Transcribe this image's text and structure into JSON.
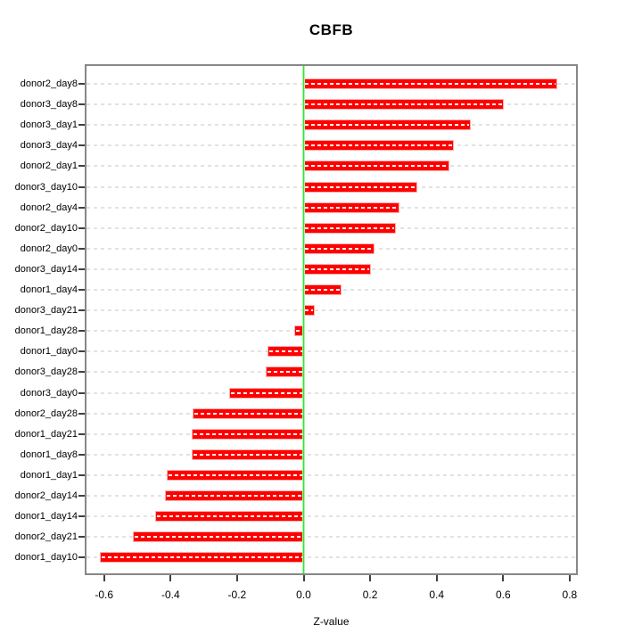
{
  "title": "CBFB",
  "chart_data": {
    "type": "bar",
    "orientation": "horizontal",
    "title": "CBFB",
    "xlabel": "Z-value",
    "ylabel": "",
    "xlim": [
      -0.65,
      0.83
    ],
    "grid": "dashed horizontal line per category, full plot width",
    "legend": "none",
    "zero_reference_line": 0.0,
    "categories": [
      "donor2_day8",
      "donor3_day8",
      "donor3_day1",
      "donor3_day4",
      "donor2_day1",
      "donor3_day10",
      "donor2_day4",
      "donor2_day10",
      "donor2_day0",
      "donor3_day14",
      "donor1_day4",
      "donor3_day21",
      "donor1_day28",
      "donor1_day0",
      "donor3_day28",
      "donor3_day0",
      "donor2_day28",
      "donor1_day21",
      "donor1_day8",
      "donor1_day1",
      "donor2_day14",
      "donor1_day14",
      "donor2_day21",
      "donor1_day10"
    ],
    "values": [
      0.76,
      0.6,
      0.5,
      0.45,
      0.435,
      0.34,
      0.285,
      0.275,
      0.21,
      0.2,
      0.11,
      0.03,
      -0.025,
      -0.105,
      -0.11,
      -0.22,
      -0.33,
      -0.335,
      -0.335,
      -0.41,
      -0.415,
      -0.445,
      -0.51,
      -0.61
    ],
    "xticks": {
      "values": [
        -0.6,
        -0.4,
        -0.2,
        0.0,
        0.2,
        0.4,
        0.6,
        0.8
      ],
      "labels": [
        "-0.6",
        "-0.4",
        "-0.2",
        "0.0",
        "0.2",
        "0.4",
        "0.6",
        "0.8"
      ]
    },
    "colors": {
      "bar": "#fe0000",
      "bar_edge": "#ffafaf",
      "bar_inner_dash": "#ffffff",
      "zero_line": "#35e435",
      "gridline": "#e2e2e2",
      "plot_border": "#878787",
      "text": "#000000"
    }
  }
}
